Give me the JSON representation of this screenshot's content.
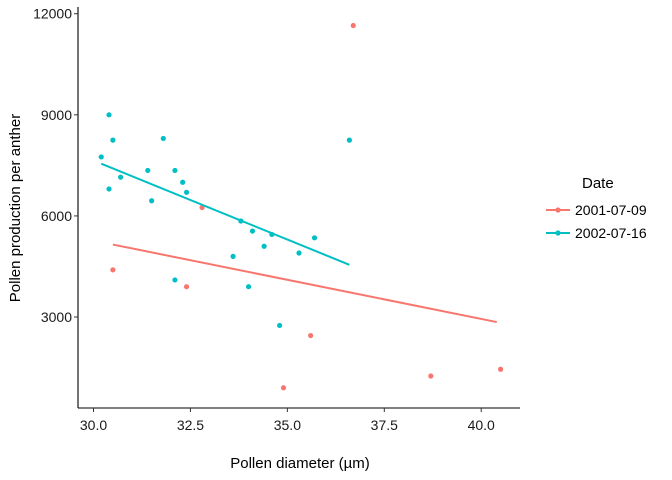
{
  "chart_data": {
    "type": "scatter",
    "xlabel": "Pollen diameter (µm)",
    "ylabel": "Pollen production per anther",
    "xlim": [
      29.6,
      41.0
    ],
    "ylim": [
      300,
      12200
    ],
    "x_ticks": [
      {
        "value": 30.0,
        "label": "30.0"
      },
      {
        "value": 32.5,
        "label": "32.5"
      },
      {
        "value": 35.0,
        "label": "35.0"
      },
      {
        "value": 37.5,
        "label": "37.5"
      },
      {
        "value": 40.0,
        "label": "40.0"
      }
    ],
    "y_ticks": [
      {
        "value": 3000,
        "label": "3000"
      },
      {
        "value": 6000,
        "label": "6000"
      },
      {
        "value": 9000,
        "label": "9000"
      },
      {
        "value": 12000,
        "label": "12000"
      }
    ],
    "grid": false,
    "legend": {
      "title": "Date",
      "position": "right"
    },
    "series": [
      {
        "name": "2001-07-09",
        "color": "#F8766D",
        "points": [
          {
            "x": 30.5,
            "y": 4400
          },
          {
            "x": 32.4,
            "y": 3900
          },
          {
            "x": 32.8,
            "y": 6250
          },
          {
            "x": 34.9,
            "y": 900
          },
          {
            "x": 35.6,
            "y": 2450
          },
          {
            "x": 36.7,
            "y": 11650
          },
          {
            "x": 38.7,
            "y": 1250
          },
          {
            "x": 40.5,
            "y": 1450
          }
        ],
        "fit": [
          {
            "x": 30.5,
            "y": 5150
          },
          {
            "x": 40.4,
            "y": 2850
          }
        ]
      },
      {
        "name": "2002-07-16",
        "color": "#00BFC4",
        "points": [
          {
            "x": 30.2,
            "y": 7750
          },
          {
            "x": 30.4,
            "y": 6800
          },
          {
            "x": 30.4,
            "y": 9000
          },
          {
            "x": 30.5,
            "y": 8250
          },
          {
            "x": 30.7,
            "y": 7150
          },
          {
            "x": 31.4,
            "y": 7350
          },
          {
            "x": 31.5,
            "y": 6450
          },
          {
            "x": 31.8,
            "y": 8300
          },
          {
            "x": 32.1,
            "y": 7350
          },
          {
            "x": 32.1,
            "y": 4100
          },
          {
            "x": 32.3,
            "y": 7000
          },
          {
            "x": 32.4,
            "y": 6700
          },
          {
            "x": 33.6,
            "y": 4800
          },
          {
            "x": 33.8,
            "y": 5850
          },
          {
            "x": 34.0,
            "y": 3900
          },
          {
            "x": 34.1,
            "y": 5550
          },
          {
            "x": 34.4,
            "y": 5100
          },
          {
            "x": 34.6,
            "y": 5450
          },
          {
            "x": 34.8,
            "y": 2750
          },
          {
            "x": 35.3,
            "y": 4900
          },
          {
            "x": 35.7,
            "y": 5350
          },
          {
            "x": 36.6,
            "y": 8250
          }
        ],
        "fit": [
          {
            "x": 30.2,
            "y": 7550
          },
          {
            "x": 36.6,
            "y": 4550
          }
        ]
      }
    ]
  }
}
